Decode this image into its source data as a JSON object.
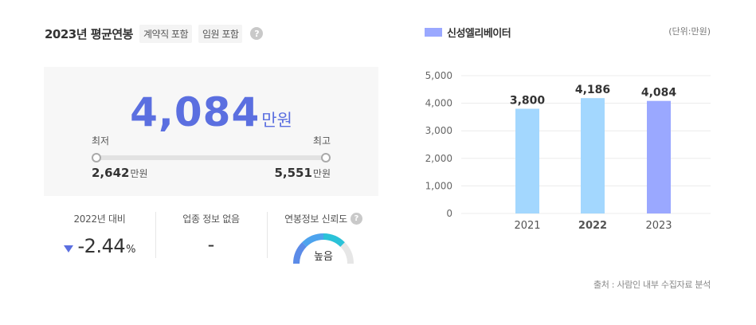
{
  "header": {
    "title": "2023년 평균연봉",
    "tags": [
      "계약직 포함",
      "임원 포함"
    ],
    "help": "?"
  },
  "salary": {
    "average": "4,084",
    "unit": "만원",
    "min_label": "최저",
    "max_label": "최고",
    "min_value": "2,642",
    "max_value": "5,551",
    "value_unit": "만원"
  },
  "stats": {
    "change_label": "2022년 대비",
    "change_value": "-2.44",
    "change_unit": "%",
    "industry_label": "업종 정보 없음",
    "industry_value": "-",
    "reliability_label": "연봉정보 신뢰도",
    "reliability_value": "높음",
    "reliability_help": "?"
  },
  "chart_data": {
    "type": "bar",
    "legend": [
      "신성엘리베이터"
    ],
    "unit_note": "(단위:만원)",
    "categories": [
      "2021",
      "2022",
      "2023"
    ],
    "values": [
      3800,
      4186,
      4084
    ],
    "value_labels": [
      "3,800",
      "4,186",
      "4,084"
    ],
    "yticks": [
      0,
      1000,
      2000,
      3000,
      4000,
      5000
    ],
    "ytick_labels": [
      "0",
      "1,000",
      "2,000",
      "3,000",
      "4,000",
      "5,000"
    ],
    "ylim": [
      0,
      5000
    ],
    "grid": true,
    "colors": [
      "#a3d7fe",
      "#a3d7fe",
      "#9aa8ff"
    ],
    "source": "출처 : 사람인 내부 수집자료 분석"
  },
  "colors": {
    "accent": "#5b6fe0",
    "bar_past": "#a3d7fe",
    "bar_current": "#9aa8ff"
  }
}
